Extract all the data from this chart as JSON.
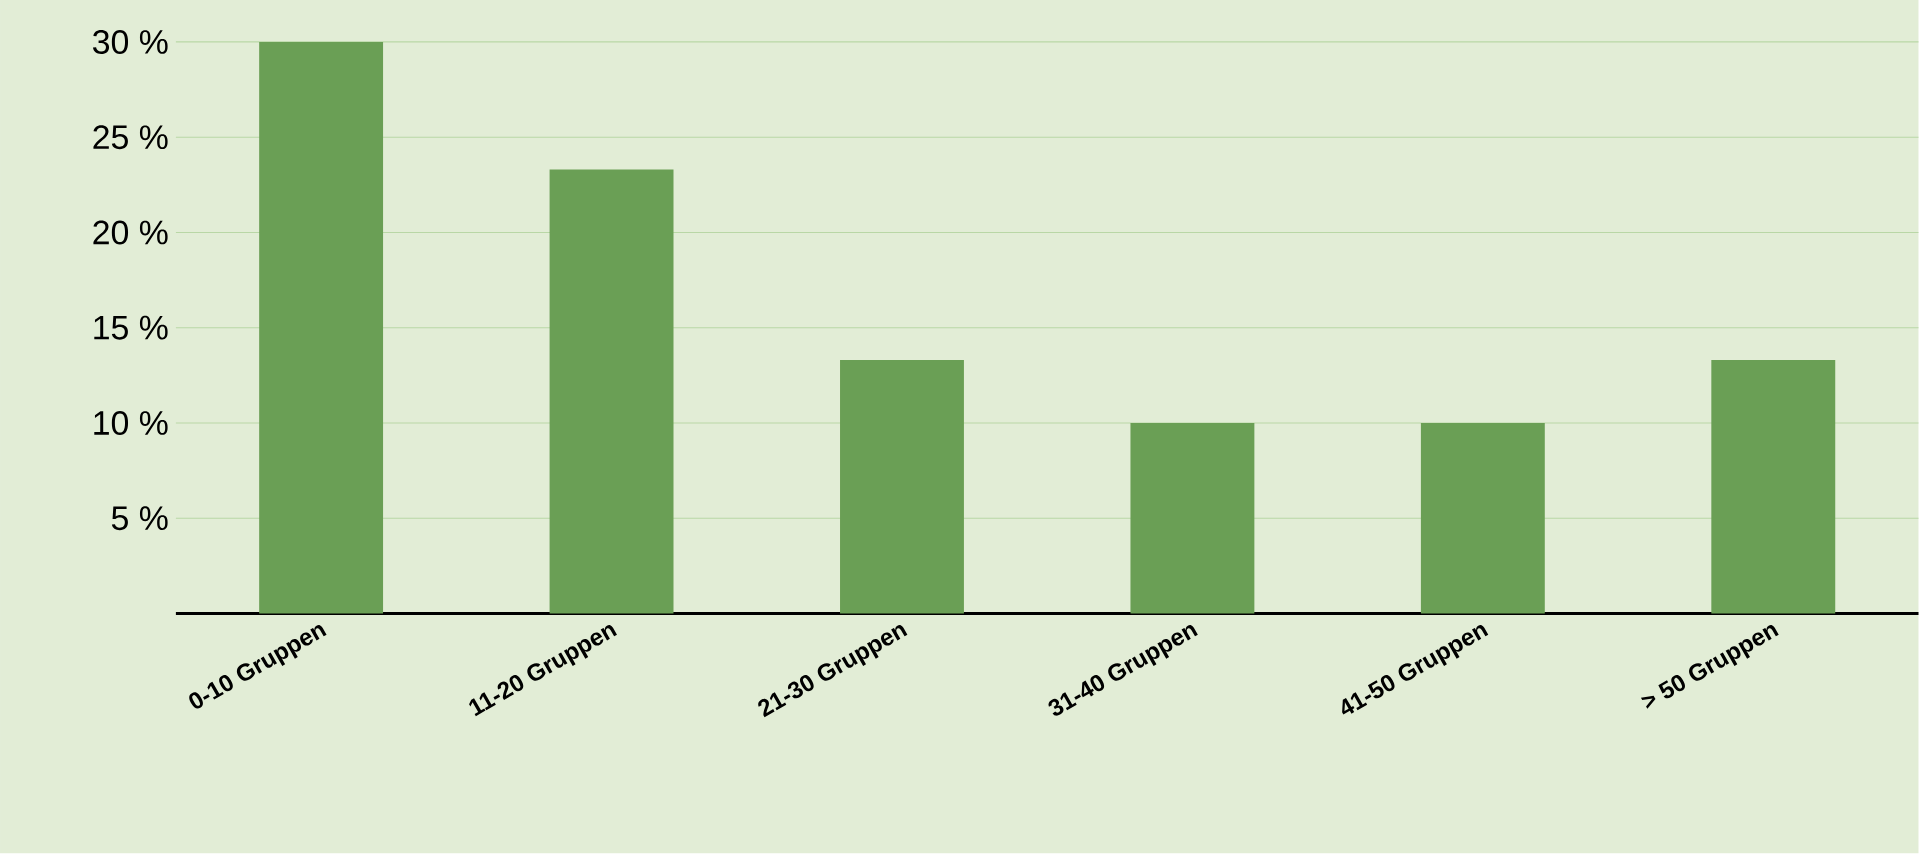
{
  "chart_data": {
    "type": "bar",
    "categories": [
      "0-10 Gruppen",
      "11-20 Gruppen",
      "21-30 Gruppen",
      "31-40 Gruppen",
      "41-50 Gruppen",
      "> 50 Gruppen"
    ],
    "values": [
      30,
      23.3,
      13.3,
      10,
      10,
      13.3
    ],
    "color": "#6a9f55",
    "ylim": [
      0,
      30
    ],
    "yticks": [
      {
        "value": 5,
        "label": "5 %"
      },
      {
        "value": 10,
        "label": "10 %"
      },
      {
        "value": 15,
        "label": "15 %"
      },
      {
        "value": 20,
        "label": "20 %"
      },
      {
        "value": 25,
        "label": "25 %"
      },
      {
        "value": 30,
        "label": "30 %"
      }
    ],
    "grid": "y"
  }
}
